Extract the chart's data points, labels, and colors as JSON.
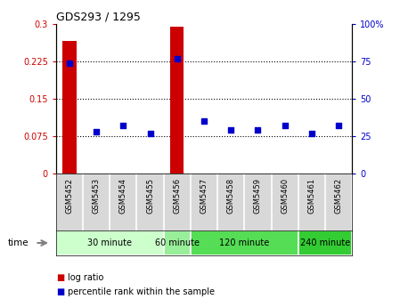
{
  "title": "GDS293 / 1295",
  "samples": [
    "GSM5452",
    "GSM5453",
    "GSM5454",
    "GSM5455",
    "GSM5456",
    "GSM5457",
    "GSM5458",
    "GSM5459",
    "GSM5460",
    "GSM5461",
    "GSM5462"
  ],
  "log_ratio": [
    0.265,
    -0.005,
    -0.008,
    -0.008,
    0.295,
    -0.01,
    -0.002,
    -0.005,
    -0.008,
    -0.005,
    -0.003
  ],
  "percentile_rank": [
    74,
    28,
    32,
    27,
    77,
    35,
    29,
    29,
    32,
    27,
    32
  ],
  "bar_color": "#cc0000",
  "dot_color": "#0000cc",
  "ylim_left": [
    0,
    0.3
  ],
  "ylim_right": [
    0,
    100
  ],
  "yticks_left": [
    0,
    0.075,
    0.15,
    0.225,
    0.3
  ],
  "yticks_right": [
    0,
    25,
    50,
    75,
    100
  ],
  "ytick_labels_left": [
    "0",
    "0.075",
    "0.15",
    "0.225",
    "0.3"
  ],
  "ytick_labels_right": [
    "0",
    "25",
    "50",
    "75",
    "100%"
  ],
  "groups": [
    {
      "label": "30 minute",
      "start": 0,
      "end": 3,
      "color": "#ccffcc"
    },
    {
      "label": "60 minute",
      "start": 4,
      "end": 4,
      "color": "#99ee99"
    },
    {
      "label": "120 minute",
      "start": 5,
      "end": 8,
      "color": "#55dd55"
    },
    {
      "label": "240 minute",
      "start": 9,
      "end": 10,
      "color": "#33cc33"
    }
  ],
  "time_label": "time",
  "legend_logratio_label": "log ratio",
  "legend_percentile_label": "percentile rank within the sample",
  "background_color": "#ffffff",
  "plot_bg_color": "#ffffff",
  "tick_area_color": "#d8d8d8"
}
